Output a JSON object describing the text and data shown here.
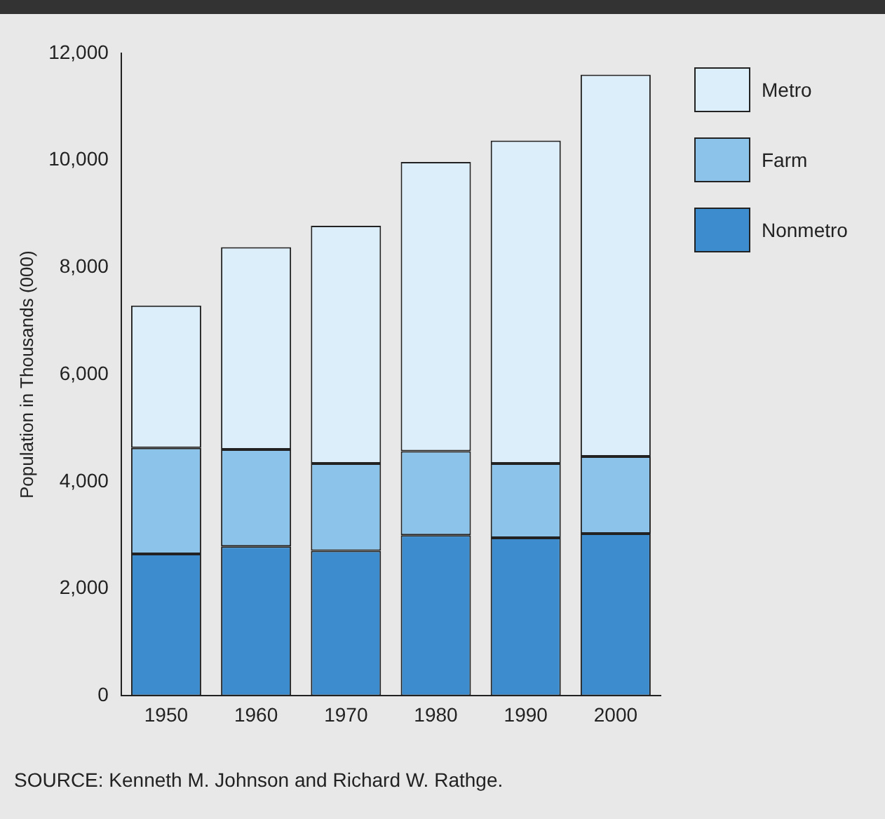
{
  "chart_data": {
    "type": "bar",
    "stacked": true,
    "ylabel": "Population in Thousands (000)",
    "categories": [
      "1950",
      "1960",
      "1970",
      "1980",
      "1990",
      "2000"
    ],
    "series": [
      {
        "name": "Nonmetro",
        "color": "#3d8ccd",
        "values": [
          2650,
          2790,
          2710,
          3000,
          2950,
          3030
        ]
      },
      {
        "name": "Farm",
        "color": "#8cc3ea",
        "values": [
          1980,
          1810,
          1630,
          1570,
          1390,
          1440
        ]
      },
      {
        "name": "Metro",
        "color": "#dceefa",
        "values": [
          2660,
          3780,
          4440,
          5400,
          6030,
          7130
        ]
      }
    ],
    "ylim": [
      0,
      12000
    ],
    "yticks": [
      {
        "value": 0,
        "label": "0"
      },
      {
        "value": 2000,
        "label": "2,000"
      },
      {
        "value": 4000,
        "label": "4,000"
      },
      {
        "value": 6000,
        "label": "6,000"
      },
      {
        "value": 8000,
        "label": "8,000"
      },
      {
        "value": 10000,
        "label": "10,000"
      },
      {
        "value": 12000,
        "label": "12,000"
      }
    ],
    "legend": "right",
    "grid": false,
    "annotations": [
      "SOURCE: Kenneth M. Johnson and Richard W. Rathge."
    ]
  }
}
